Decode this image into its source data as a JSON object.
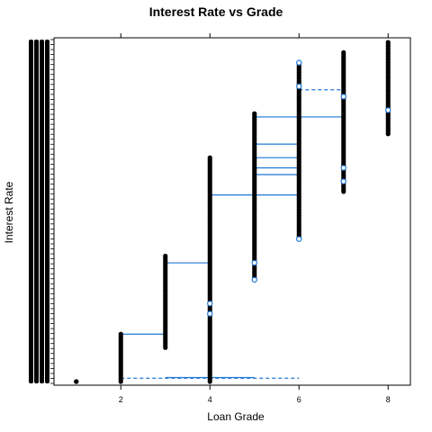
{
  "chart_data": {
    "type": "scatter",
    "title": "Interest Rate vs Grade",
    "xlabel": "Loan Grade",
    "ylabel": "Interest Rate",
    "xlim": [
      0.5,
      8.5
    ],
    "x_ticks": [
      2,
      4,
      6,
      8
    ],
    "ylim": [
      0,
      1
    ],
    "y_tick_labels_legible": false,
    "grid": false,
    "colors": {
      "points": "#000000",
      "stars": "#1f78d8",
      "links": "#1f78d8"
    },
    "columns": [
      {
        "grade": 1,
        "y_min": 0.0,
        "y_max": 0.0
      },
      {
        "grade": 2,
        "y_min": 0.0,
        "y_max": 0.14
      },
      {
        "grade": 3,
        "y_min": 0.1,
        "y_max": 0.37
      },
      {
        "grade": 4,
        "y_min": 0.0,
        "y_max": 0.66
      },
      {
        "grade": 5,
        "y_min": 0.3,
        "y_max": 0.79
      },
      {
        "grade": 6,
        "y_min": 0.42,
        "y_max": 0.94
      },
      {
        "grade": 7,
        "y_min": 0.56,
        "y_max": 0.97
      },
      {
        "grade": 8,
        "y_min": 0.73,
        "y_max": 1.0
      }
    ],
    "blue_points": [
      {
        "x": 4,
        "y": 0.2
      },
      {
        "x": 4,
        "y": 0.23
      },
      {
        "x": 5,
        "y": 0.3
      },
      {
        "x": 5,
        "y": 0.35
      },
      {
        "x": 6,
        "y": 0.42
      },
      {
        "x": 6,
        "y": 0.94
      },
      {
        "x": 6,
        "y": 0.87
      },
      {
        "x": 7,
        "y": 0.59
      },
      {
        "x": 7,
        "y": 0.63
      },
      {
        "x": 7,
        "y": 0.84
      },
      {
        "x": 8,
        "y": 0.8
      }
    ],
    "link_lines": [
      {
        "x1": 2,
        "x2": 3,
        "y": 0.14,
        "dashed": false
      },
      {
        "x1": 3,
        "x2": 4,
        "y": 0.35,
        "dashed": false
      },
      {
        "x1": 4,
        "x2": 6,
        "y": 0.55,
        "dashed": false
      },
      {
        "x1": 5,
        "x2": 7,
        "y": 0.78,
        "dashed": false
      },
      {
        "x1": 5,
        "x2": 6,
        "y": 0.7,
        "dashed": false
      },
      {
        "x1": 5,
        "x2": 6,
        "y": 0.66,
        "dashed": false
      },
      {
        "x1": 5,
        "x2": 6,
        "y": 0.63,
        "dashed": false
      },
      {
        "x1": 5,
        "x2": 6,
        "y": 0.61,
        "dashed": false
      },
      {
        "x1": 6,
        "x2": 7,
        "y": 0.86,
        "dashed": true
      },
      {
        "x1": 2,
        "x2": 6,
        "y": 0.01,
        "dashed": true
      },
      {
        "x1": 3,
        "x2": 5,
        "y": 0.012,
        "dashed": false
      }
    ]
  }
}
